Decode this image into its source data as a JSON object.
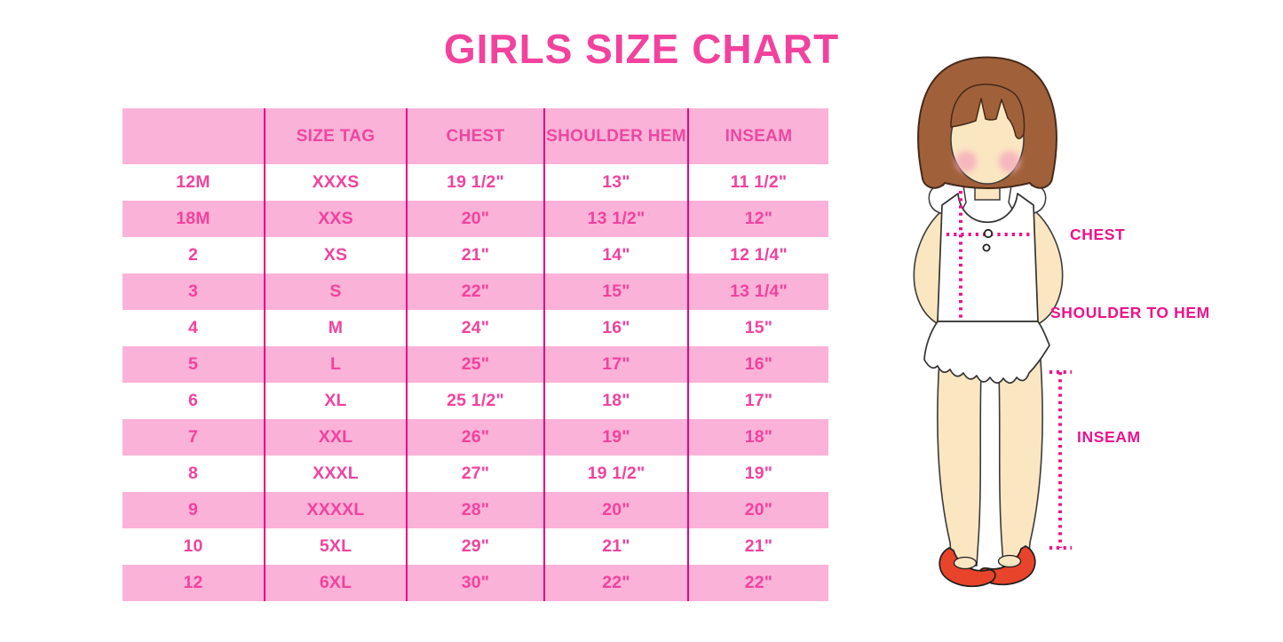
{
  "page": {
    "title": "GIRLS SIZE CHART"
  },
  "colors": {
    "title_pink": "#F2429E",
    "row_band_pink": "#FBB2D8",
    "table_text_pink": "#F2429E",
    "column_divider_pink": "#E60680",
    "measure_line_pink": "#EC128C",
    "hair_brown": "#A0613A",
    "skin_tone": "#FBE6C2",
    "shoe_red": "#E8432B"
  },
  "chart_data": {
    "type": "table",
    "title": "GIRLS SIZE CHART",
    "columns": [
      "",
      "SIZE TAG",
      "CHEST",
      "SHOULDER HEM",
      "INSEAM"
    ],
    "rows": [
      [
        "12M",
        "XXXS",
        "19 1/2\"",
        "13\"",
        "11 1/2\""
      ],
      [
        "18M",
        "XXS",
        "20\"",
        "13 1/2\"",
        "12\""
      ],
      [
        "2",
        "XS",
        "21\"",
        "14\"",
        "12 1/4\""
      ],
      [
        "3",
        "S",
        "22\"",
        "15\"",
        "13 1/4\""
      ],
      [
        "4",
        "M",
        "24\"",
        "16\"",
        "15\""
      ],
      [
        "5",
        "L",
        "25\"",
        "17\"",
        "16\""
      ],
      [
        "6",
        "XL",
        "25 1/2\"",
        "18\"",
        "17\""
      ],
      [
        "7",
        "XXL",
        "26\"",
        "19\"",
        "18\""
      ],
      [
        "8",
        "XXXL",
        "27\"",
        "19 1/2\"",
        "19\""
      ],
      [
        "9",
        "XXXXL",
        "28\"",
        "20\"",
        "20\""
      ],
      [
        "10",
        "5XL",
        "29\"",
        "21\"",
        "21\""
      ],
      [
        "12",
        "6XL",
        "30\"",
        "22\"",
        "22\""
      ]
    ],
    "layout": {
      "banding": "alternating pink/white rows, pink header",
      "vertical_dividers": true,
      "horizontal_dividers": false
    }
  },
  "figure": {
    "description": "illustrated girl with measurement guide lines",
    "labels": {
      "chest": "CHEST",
      "shoulder_to_hem": "SHOULDER TO HEM",
      "inseam": "INSEAM"
    }
  }
}
